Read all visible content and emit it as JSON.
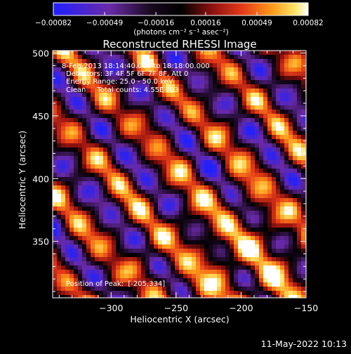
{
  "chart_data": {
    "type": "heatmap",
    "title": "Reconstructed RHESSI Image",
    "xlabel": "Heliocentric X (arcsec)",
    "ylabel": "Heliocentric Y (arcsec)",
    "xlim": [
      -345,
      -150
    ],
    "ylim": [
      305,
      502
    ],
    "xticks": [
      -300,
      -250,
      -200,
      -150
    ],
    "xtick_labels": [
      "−300",
      "−250",
      "−200",
      "−150"
    ],
    "yticks": [
      350,
      400,
      450,
      500
    ],
    "ytick_labels": [
      "350",
      "400",
      "450",
      "500"
    ],
    "colorbar": {
      "ticks": [
        -0.00082,
        -0.00049,
        -0.00016,
        0.00016,
        0.00049,
        0.00082
      ],
      "tick_labels": [
        "−0.00082",
        "−0.00049",
        "−0.00016",
        "0.00016",
        "0.00049",
        "0.00082"
      ],
      "units": "(photons cm⁻² s⁻¹ asec⁻²)",
      "range": [
        -0.00082,
        0.00082
      ]
    },
    "annotations": [
      "8-Feb-2013 18:14:40.000 to 18:18:00.000",
      "Detectors: 3F 4F 5F 6F 7F 8F, Att 0",
      "Energy Range: 25.0 - 50.0 keV",
      "Clean     Total counts: 4.55E+03"
    ],
    "peak": {
      "label": "Position of Peak:  [-205,334]",
      "x": -205,
      "y": 334
    },
    "colors": {
      "low": "#1a1aff",
      "mid_low": "#5a1e9a",
      "zero": "#000000",
      "mid_high": "#e0301e",
      "high": "#ffe040",
      "max": "#ffffff"
    }
  },
  "footer": {
    "timestamp": "11-May-2022 10:13"
  }
}
